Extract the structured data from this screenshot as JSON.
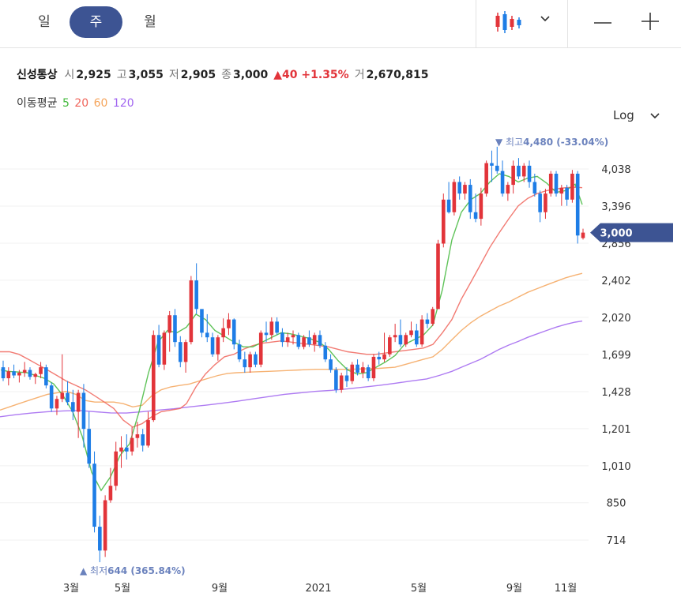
{
  "tabs": [
    {
      "label": "일",
      "active": false
    },
    {
      "label": "주",
      "active": true
    },
    {
      "label": "월",
      "active": false
    }
  ],
  "toolbar": {
    "chart_type_icon": "candlestick-icon",
    "dropdown_icon": "chevron-down-icon",
    "zoom_out_icon": "minus-icon",
    "zoom_in_icon": "plus-icon"
  },
  "quote": {
    "name": "신성통상",
    "open_label": "시",
    "open": "2,925",
    "high_label": "고",
    "high": "3,055",
    "low_label": "저",
    "low": "2,905",
    "close_label": "종",
    "close": "3,000",
    "change": "▲40 +1.35%",
    "volume_label": "거",
    "volume": "2,670,815"
  },
  "moving_average": {
    "label": "이동평균",
    "periods": [
      {
        "label": "5",
        "color": "#43b93c"
      },
      {
        "label": "20",
        "color": "#f0645a"
      },
      {
        "label": "60",
        "color": "#f5a45a"
      },
      {
        "label": "120",
        "color": "#a064f0"
      }
    ]
  },
  "scale_selector": {
    "label": "Log"
  },
  "colors": {
    "up": "#e2343a",
    "down": "#1e7de6",
    "accent": "#3d5493"
  },
  "chart_data": {
    "type": "candlestick",
    "scale": "log",
    "interval": "weekly",
    "y_ticks": [
      "714",
      "850",
      "1,010",
      "1,201",
      "1,428",
      "1,699",
      "2,020",
      "2,402",
      "2,856",
      "3,396",
      "4,038"
    ],
    "x_ticks": [
      "3월",
      "5월",
      "9월",
      "2021",
      "5월",
      "9월",
      "11월"
    ],
    "current_price": "3,000",
    "high_annotation": {
      "label": "최고",
      "value": "4,480",
      "pct": "(-33.04%)",
      "marker": "▼"
    },
    "low_annotation": {
      "label": "최저",
      "value": "644",
      "pct": "(365.84%)",
      "marker": "▲"
    },
    "candles": [
      [
        1600,
        1650,
        1500,
        1520
      ],
      [
        1520,
        1600,
        1470,
        1570
      ],
      [
        1570,
        1620,
        1520,
        1540
      ],
      [
        1540,
        1580,
        1490,
        1560
      ],
      [
        1560,
        1640,
        1530,
        1580
      ],
      [
        1580,
        1600,
        1510,
        1530
      ],
      [
        1530,
        1560,
        1480,
        1550
      ],
      [
        1550,
        1640,
        1520,
        1600
      ],
      [
        1600,
        1620,
        1450,
        1470
      ],
      [
        1470,
        1490,
        1300,
        1320
      ],
      [
        1320,
        1400,
        1280,
        1380
      ],
      [
        1380,
        1700,
        1360,
        1420
      ],
      [
        1420,
        1500,
        1340,
        1360
      ],
      [
        1360,
        1440,
        1250,
        1300
      ],
      [
        1300,
        1440,
        1150,
        1420
      ],
      [
        1420,
        1480,
        1100,
        1200
      ],
      [
        1200,
        1300,
        1000,
        1020
      ],
      [
        1020,
        1080,
        740,
        760
      ],
      [
        760,
        800,
        644,
        680
      ],
      [
        680,
        880,
        660,
        860
      ],
      [
        860,
        1000,
        850,
        920
      ],
      [
        920,
        1130,
        900,
        1080
      ],
      [
        1080,
        1160,
        1000,
        1100
      ],
      [
        1100,
        1170,
        1040,
        1080
      ],
      [
        1080,
        1210,
        1060,
        1150
      ],
      [
        1150,
        1240,
        1100,
        1170
      ],
      [
        1170,
        1200,
        1080,
        1110
      ],
      [
        1110,
        1300,
        1100,
        1250
      ],
      [
        1250,
        1900,
        1240,
        1860
      ],
      [
        1860,
        1950,
        1600,
        1620
      ],
      [
        1620,
        1900,
        1580,
        1880
      ],
      [
        1880,
        2080,
        1720,
        2040
      ],
      [
        2040,
        2100,
        1760,
        1800
      ],
      [
        1800,
        1850,
        1600,
        1640
      ],
      [
        1640,
        1820,
        1560,
        1800
      ],
      [
        1800,
        2450,
        1780,
        2400
      ],
      [
        2400,
        2600,
        2050,
        2100
      ],
      [
        2100,
        2080,
        1840,
        1880
      ],
      [
        1880,
        2050,
        1800,
        1840
      ],
      [
        1840,
        1880,
        1680,
        1700
      ],
      [
        1700,
        1860,
        1650,
        1840
      ],
      [
        1840,
        2010,
        1800,
        1920
      ],
      [
        1920,
        2060,
        1860,
        2000
      ],
      [
        2000,
        2010,
        1740,
        1780
      ],
      [
        1780,
        1820,
        1640,
        1660
      ],
      [
        1660,
        1720,
        1560,
        1600
      ],
      [
        1600,
        1720,
        1560,
        1700
      ],
      [
        1700,
        1720,
        1600,
        1620
      ],
      [
        1620,
        1900,
        1600,
        1880
      ],
      [
        1880,
        1980,
        1800,
        1860
      ],
      [
        1860,
        2020,
        1820,
        1980
      ],
      [
        1980,
        2020,
        1860,
        1880
      ],
      [
        1880,
        1920,
        1760,
        1800
      ],
      [
        1800,
        1880,
        1760,
        1840
      ],
      [
        1840,
        1900,
        1780,
        1860
      ],
      [
        1860,
        1880,
        1740,
        1760
      ],
      [
        1760,
        1860,
        1740,
        1840
      ],
      [
        1840,
        1900,
        1760,
        1780
      ],
      [
        1780,
        1880,
        1720,
        1860
      ],
      [
        1860,
        1900,
        1750,
        1770
      ],
      [
        1770,
        1800,
        1640,
        1660
      ],
      [
        1660,
        1700,
        1560,
        1580
      ],
      [
        1580,
        1600,
        1420,
        1440
      ],
      [
        1440,
        1560,
        1420,
        1540
      ],
      [
        1540,
        1600,
        1460,
        1500
      ],
      [
        1500,
        1640,
        1480,
        1620
      ],
      [
        1620,
        1660,
        1540,
        1560
      ],
      [
        1560,
        1640,
        1520,
        1600
      ],
      [
        1600,
        1620,
        1500,
        1520
      ],
      [
        1520,
        1700,
        1500,
        1680
      ],
      [
        1680,
        1720,
        1620,
        1660
      ],
      [
        1660,
        1880,
        1640,
        1700
      ],
      [
        1700,
        1860,
        1680,
        1840
      ],
      [
        1840,
        1960,
        1800,
        1860
      ],
      [
        1860,
        2000,
        1760,
        1780
      ],
      [
        1780,
        1880,
        1760,
        1860
      ],
      [
        1860,
        1980,
        1840,
        1900
      ],
      [
        1900,
        1960,
        1760,
        1780
      ],
      [
        1780,
        2040,
        1760,
        2000
      ],
      [
        2000,
        2060,
        1920,
        1960
      ],
      [
        1960,
        2120,
        1940,
        2100
      ],
      [
        2100,
        2900,
        2100,
        2850
      ],
      [
        2850,
        3600,
        2800,
        3500
      ],
      [
        3500,
        3800,
        3280,
        3300
      ],
      [
        3300,
        3850,
        3250,
        3800
      ],
      [
        3800,
        3900,
        3500,
        3600
      ],
      [
        3600,
        3800,
        3500,
        3750
      ],
      [
        3750,
        3850,
        3200,
        3300
      ],
      [
        3300,
        3600,
        3150,
        3200
      ],
      [
        3200,
        3700,
        3100,
        3600
      ],
      [
        3600,
        4200,
        3550,
        4150
      ],
      [
        4150,
        4400,
        3800,
        4100
      ],
      [
        4100,
        4480,
        3950,
        4000
      ],
      [
        4000,
        4200,
        3550,
        3600
      ],
      [
        3600,
        3800,
        3480,
        3750
      ],
      [
        3750,
        4200,
        3600,
        4100
      ],
      [
        4100,
        4250,
        3850,
        3900
      ],
      [
        3900,
        4150,
        3800,
        4100
      ],
      [
        4100,
        4200,
        3700,
        3800
      ],
      [
        3800,
        3950,
        3550,
        3600
      ],
      [
        3600,
        3650,
        3150,
        3300
      ],
      [
        3300,
        3680,
        3200,
        3600
      ],
      [
        3600,
        4000,
        3550,
        3950
      ],
      [
        3950,
        4000,
        3550,
        3600
      ],
      [
        3600,
        3750,
        3400,
        3700
      ],
      [
        3700,
        3750,
        3400,
        3500
      ],
      [
        3500,
        4020,
        3450,
        3950
      ],
      [
        3950,
        4000,
        2850,
        2960
      ],
      [
        2925,
        3055,
        2905,
        3000
      ]
    ],
    "ma_5": [
      [
        1,
        1580
      ],
      [
        10,
        1570
      ],
      [
        22,
        1565
      ],
      [
        34,
        1560
      ],
      [
        45,
        1540
      ],
      [
        56,
        1520
      ],
      [
        68,
        1480
      ],
      [
        80,
        1400
      ],
      [
        92,
        1300
      ],
      [
        104,
        1160
      ],
      [
        116,
        980
      ],
      [
        128,
        900
      ],
      [
        140,
        960
      ],
      [
        152,
        1060
      ],
      [
        164,
        1120
      ],
      [
        176,
        1300
      ],
      [
        188,
        1560
      ],
      [
        200,
        1800
      ],
      [
        212,
        1900
      ],
      [
        224,
        1880
      ],
      [
        236,
        1930
      ],
      [
        248,
        2050
      ],
      [
        260,
        2000
      ],
      [
        272,
        1900
      ],
      [
        284,
        1850
      ],
      [
        296,
        1800
      ],
      [
        308,
        1760
      ],
      [
        320,
        1760
      ],
      [
        332,
        1800
      ],
      [
        344,
        1840
      ],
      [
        356,
        1880
      ],
      [
        368,
        1870
      ],
      [
        380,
        1850
      ],
      [
        392,
        1830
      ],
      [
        404,
        1800
      ],
      [
        416,
        1740
      ],
      [
        428,
        1650
      ],
      [
        440,
        1580
      ],
      [
        452,
        1550
      ],
      [
        464,
        1560
      ],
      [
        476,
        1600
      ],
      [
        488,
        1640
      ],
      [
        500,
        1690
      ],
      [
        512,
        1780
      ],
      [
        524,
        1820
      ],
      [
        536,
        1860
      ],
      [
        548,
        1950
      ],
      [
        560,
        2300
      ],
      [
        572,
        2900
      ],
      [
        584,
        3300
      ],
      [
        596,
        3500
      ],
      [
        608,
        3600
      ],
      [
        620,
        3800
      ],
      [
        632,
        3950
      ],
      [
        644,
        3900
      ],
      [
        656,
        3800
      ],
      [
        668,
        3870
      ],
      [
        680,
        3900
      ],
      [
        692,
        3780
      ],
      [
        704,
        3620
      ],
      [
        716,
        3650
      ],
      [
        728,
        3760
      ],
      [
        737,
        3420
      ]
    ],
    "ma_20": [
      [
        0,
        1720
      ],
      [
        12,
        1720
      ],
      [
        24,
        1700
      ],
      [
        36,
        1660
      ],
      [
        48,
        1620
      ],
      [
        60,
        1580
      ],
      [
        72,
        1540
      ],
      [
        84,
        1500
      ],
      [
        96,
        1470
      ],
      [
        108,
        1440
      ],
      [
        120,
        1400
      ],
      [
        132,
        1360
      ],
      [
        144,
        1320
      ],
      [
        156,
        1250
      ],
      [
        168,
        1210
      ],
      [
        180,
        1230
      ],
      [
        192,
        1270
      ],
      [
        204,
        1300
      ],
      [
        216,
        1310
      ],
      [
        228,
        1320
      ],
      [
        236,
        1350
      ],
      [
        248,
        1460
      ],
      [
        260,
        1550
      ],
      [
        272,
        1620
      ],
      [
        284,
        1680
      ],
      [
        296,
        1700
      ],
      [
        308,
        1740
      ],
      [
        320,
        1770
      ],
      [
        332,
        1790
      ],
      [
        344,
        1800
      ],
      [
        356,
        1810
      ],
      [
        368,
        1800
      ],
      [
        380,
        1790
      ],
      [
        392,
        1780
      ],
      [
        404,
        1770
      ],
      [
        416,
        1760
      ],
      [
        428,
        1740
      ],
      [
        440,
        1720
      ],
      [
        452,
        1710
      ],
      [
        464,
        1700
      ],
      [
        476,
        1700
      ],
      [
        488,
        1710
      ],
      [
        500,
        1720
      ],
      [
        512,
        1730
      ],
      [
        524,
        1740
      ],
      [
        536,
        1750
      ],
      [
        548,
        1780
      ],
      [
        560,
        1880
      ],
      [
        572,
        2000
      ],
      [
        584,
        2200
      ],
      [
        596,
        2380
      ],
      [
        608,
        2580
      ],
      [
        620,
        2800
      ],
      [
        632,
        3000
      ],
      [
        644,
        3200
      ],
      [
        656,
        3400
      ],
      [
        668,
        3520
      ],
      [
        680,
        3600
      ],
      [
        692,
        3650
      ],
      [
        704,
        3680
      ],
      [
        716,
        3700
      ],
      [
        728,
        3710
      ],
      [
        737,
        3700
      ]
    ],
    "ma_60": [
      [
        0,
        1310
      ],
      [
        12,
        1330
      ],
      [
        24,
        1350
      ],
      [
        36,
        1370
      ],
      [
        48,
        1390
      ],
      [
        60,
        1410
      ],
      [
        72,
        1420
      ],
      [
        84,
        1430
      ],
      [
        96,
        1410
      ],
      [
        108,
        1370
      ],
      [
        120,
        1360
      ],
      [
        132,
        1360
      ],
      [
        144,
        1360
      ],
      [
        156,
        1350
      ],
      [
        168,
        1330
      ],
      [
        180,
        1340
      ],
      [
        192,
        1400
      ],
      [
        204,
        1440
      ],
      [
        216,
        1460
      ],
      [
        228,
        1470
      ],
      [
        240,
        1480
      ],
      [
        252,
        1500
      ],
      [
        264,
        1520
      ],
      [
        276,
        1540
      ],
      [
        288,
        1555
      ],
      [
        300,
        1560
      ],
      [
        320,
        1565
      ],
      [
        340,
        1570
      ],
      [
        360,
        1575
      ],
      [
        380,
        1580
      ],
      [
        400,
        1585
      ],
      [
        420,
        1585
      ],
      [
        440,
        1585
      ],
      [
        460,
        1588
      ],
      [
        480,
        1592
      ],
      [
        500,
        1600
      ],
      [
        512,
        1620
      ],
      [
        524,
        1640
      ],
      [
        536,
        1660
      ],
      [
        548,
        1680
      ],
      [
        560,
        1740
      ],
      [
        572,
        1820
      ],
      [
        584,
        1900
      ],
      [
        596,
        1970
      ],
      [
        608,
        2030
      ],
      [
        620,
        2080
      ],
      [
        632,
        2130
      ],
      [
        644,
        2170
      ],
      [
        656,
        2220
      ],
      [
        668,
        2270
      ],
      [
        680,
        2310
      ],
      [
        692,
        2350
      ],
      [
        704,
        2390
      ],
      [
        716,
        2430
      ],
      [
        728,
        2460
      ],
      [
        737,
        2480
      ]
    ],
    "ma_120": [
      [
        0,
        1270
      ],
      [
        20,
        1282
      ],
      [
        40,
        1292
      ],
      [
        60,
        1300
      ],
      [
        80,
        1305
      ],
      [
        100,
        1308
      ],
      [
        120,
        1300
      ],
      [
        140,
        1293
      ],
      [
        160,
        1292
      ],
      [
        180,
        1300
      ],
      [
        200,
        1310
      ],
      [
        220,
        1318
      ],
      [
        240,
        1330
      ],
      [
        260,
        1340
      ],
      [
        280,
        1352
      ],
      [
        300,
        1365
      ],
      [
        320,
        1380
      ],
      [
        340,
        1395
      ],
      [
        360,
        1410
      ],
      [
        380,
        1420
      ],
      [
        400,
        1430
      ],
      [
        420,
        1437
      ],
      [
        440,
        1447
      ],
      [
        460,
        1458
      ],
      [
        480,
        1470
      ],
      [
        500,
        1485
      ],
      [
        520,
        1500
      ],
      [
        540,
        1515
      ],
      [
        556,
        1540
      ],
      [
        572,
        1570
      ],
      [
        584,
        1600
      ],
      [
        596,
        1630
      ],
      [
        608,
        1660
      ],
      [
        620,
        1700
      ],
      [
        632,
        1740
      ],
      [
        644,
        1775
      ],
      [
        656,
        1805
      ],
      [
        668,
        1840
      ],
      [
        680,
        1870
      ],
      [
        692,
        1900
      ],
      [
        704,
        1930
      ],
      [
        716,
        1955
      ],
      [
        728,
        1975
      ],
      [
        737,
        1985
      ]
    ]
  }
}
